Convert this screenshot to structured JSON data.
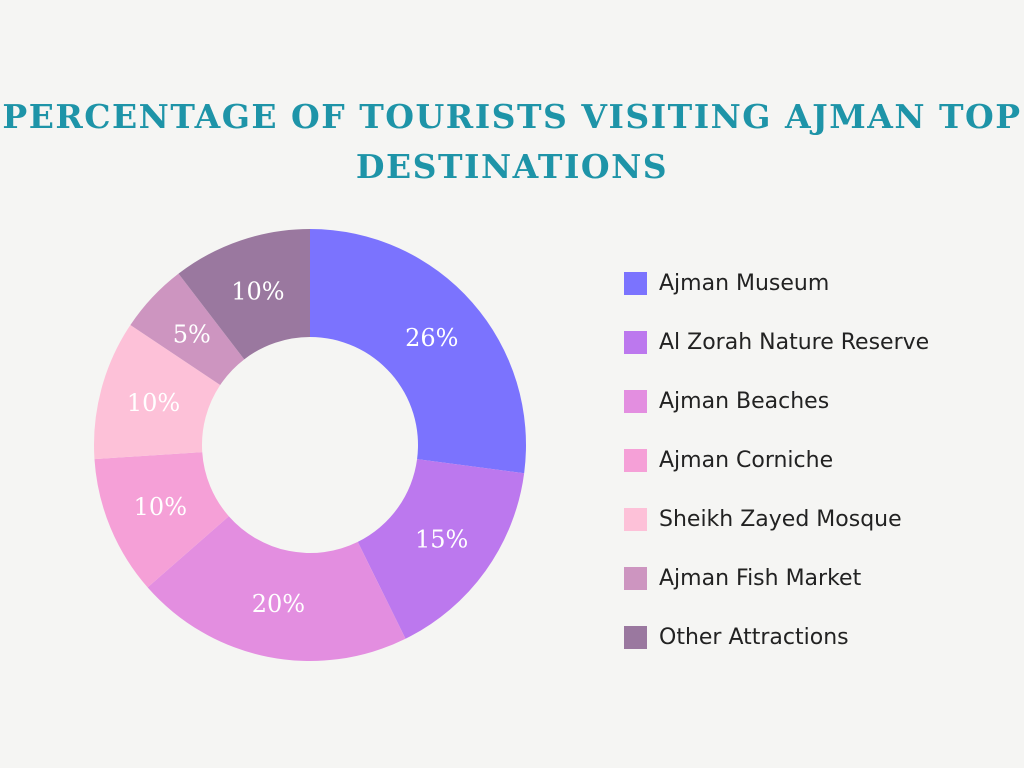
{
  "chart_data": {
    "type": "pie",
    "title_lines": [
      "PERCENTAGE OF TOURISTS VISITING AJMAN TOP",
      "DESTINATIONS"
    ],
    "donut": true,
    "legend_position": "right",
    "slices": [
      {
        "label": "Ajman Museum",
        "value": 26,
        "value_label": "26%",
        "color": "#7b73fe"
      },
      {
        "label": "Al Zorah Nature Reserve",
        "value": 15,
        "value_label": "15%",
        "color": "#bc78ee"
      },
      {
        "label": "Ajman Beaches",
        "value": 20,
        "value_label": "20%",
        "color": "#e38ee0"
      },
      {
        "label": "Ajman Corniche",
        "value": 10,
        "value_label": "10%",
        "color": "#f5a0d7"
      },
      {
        "label": "Sheikh Zayed Mosque",
        "value": 10,
        "value_label": "10%",
        "color": "#fdc1d8"
      },
      {
        "label": "Ajman Fish Market",
        "value": 5,
        "value_label": "5%",
        "color": "#cd95c0"
      },
      {
        "label": "Other Attractions",
        "value": 10,
        "value_label": "10%",
        "color": "#9a789f"
      }
    ]
  }
}
